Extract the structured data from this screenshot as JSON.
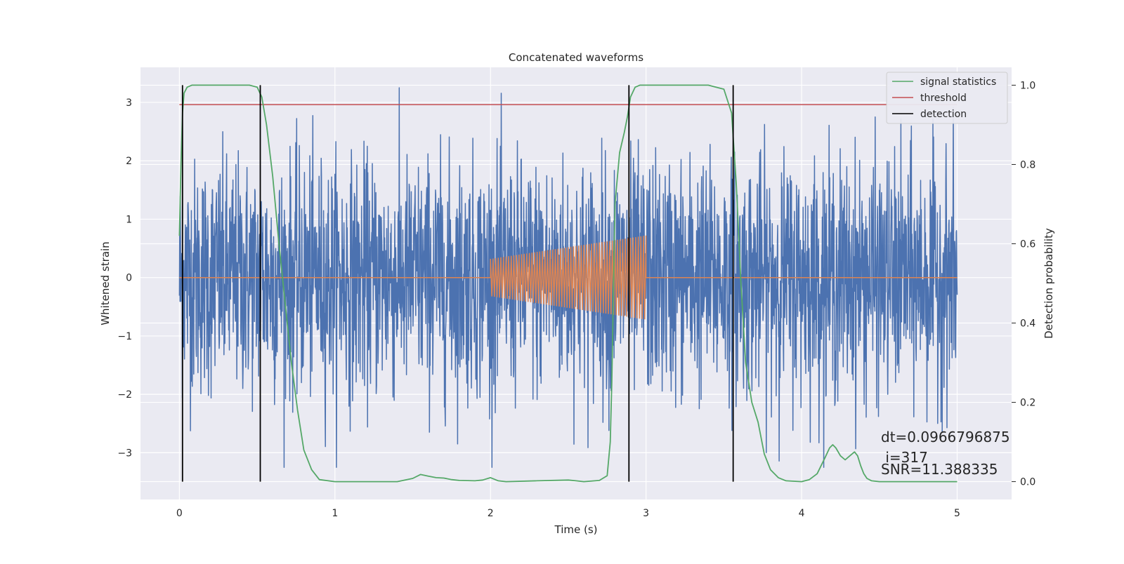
{
  "chart_data": {
    "type": "line",
    "title": "Concatenated waveforms",
    "xlabel": "Time (s)",
    "ylabel_left": "Whitened strain",
    "ylabel_right": "Detection probability",
    "xlim": [
      -0.25,
      5.35
    ],
    "ylim_left": [
      -3.8,
      3.6
    ],
    "ylim_right": [
      -0.045,
      1.045
    ],
    "x_ticks": [
      0,
      1,
      2,
      3,
      4,
      5
    ],
    "x_tick_labels": [
      "0",
      "1",
      "2",
      "3",
      "4",
      "5"
    ],
    "y_left_ticks": [
      3,
      2,
      1,
      0,
      -1,
      -2,
      -3
    ],
    "y_left_tick_labels": [
      "3",
      "2",
      "1",
      "0",
      "−1",
      "−2",
      "−3"
    ],
    "y_right_ticks": [
      1.0,
      0.8,
      0.6,
      0.4,
      0.2,
      0.0
    ],
    "y_right_tick_labels": [
      "1.0",
      "0.8",
      "0.6",
      "0.4",
      "0.2",
      "0.0"
    ],
    "grid": true,
    "legend_position": "upper right",
    "legend": [
      {
        "label": "signal statistics",
        "color": "#55a868"
      },
      {
        "label": "threshold",
        "color": "#c44e52"
      },
      {
        "label": "detection",
        "color": "#000000"
      }
    ],
    "noise": {
      "color": "#4c72b0",
      "x_range": [
        0,
        5
      ],
      "typical_amplitude": 1.0,
      "peak_amplitude": 3.25
    },
    "injected_signal": {
      "color": "#dd8452",
      "chirp_start": 2.0,
      "chirp_end": 3.0,
      "amplitude_start": 0.32,
      "amplitude_end": 0.72,
      "cycles": 60
    },
    "signal_statistics": {
      "axis": "right",
      "color": "#55a868",
      "x": [
        0.0,
        0.01,
        0.02,
        0.03,
        0.05,
        0.08,
        0.12,
        0.2,
        0.3,
        0.4,
        0.45,
        0.5,
        0.53,
        0.56,
        0.6,
        0.64,
        0.68,
        0.72,
        0.76,
        0.8,
        0.85,
        0.9,
        1.0,
        1.2,
        1.4,
        1.5,
        1.55,
        1.6,
        1.65,
        1.7,
        1.75,
        1.8,
        1.9,
        1.95,
        2.0,
        2.05,
        2.1,
        2.3,
        2.5,
        2.55,
        2.6,
        2.7,
        2.75,
        2.77,
        2.78,
        2.8,
        2.83,
        2.86,
        2.88,
        2.9,
        2.93,
        2.96,
        3.0,
        3.1,
        3.2,
        3.3,
        3.4,
        3.5,
        3.55,
        3.58,
        3.61,
        3.64,
        3.68,
        3.72,
        3.76,
        3.8,
        3.85,
        3.9,
        4.0,
        4.05,
        4.1,
        4.15,
        4.18,
        4.2,
        4.22,
        4.25,
        4.28,
        4.31,
        4.34,
        4.36,
        4.38,
        4.4,
        4.42,
        4.45,
        4.5,
        5.0
      ],
      "y": [
        0.62,
        0.8,
        0.93,
        0.98,
        0.995,
        1.0,
        1.0,
        1.0,
        1.0,
        1.0,
        1.0,
        0.995,
        0.97,
        0.9,
        0.77,
        0.6,
        0.45,
        0.3,
        0.18,
        0.08,
        0.03,
        0.005,
        0.0,
        0.0,
        0.0,
        0.008,
        0.018,
        0.014,
        0.01,
        0.009,
        0.005,
        0.003,
        0.002,
        0.004,
        0.01,
        0.002,
        0.0,
        0.002,
        0.004,
        0.002,
        0.0,
        0.003,
        0.015,
        0.1,
        0.25,
        0.7,
        0.83,
        0.88,
        0.92,
        0.97,
        0.995,
        1.0,
        1.0,
        1.0,
        1.0,
        1.0,
        1.0,
        0.99,
        0.93,
        0.75,
        0.5,
        0.3,
        0.2,
        0.15,
        0.07,
        0.03,
        0.01,
        0.002,
        0.0,
        0.005,
        0.02,
        0.06,
        0.085,
        0.093,
        0.085,
        0.065,
        0.055,
        0.065,
        0.075,
        0.065,
        0.04,
        0.02,
        0.008,
        0.002,
        0.0,
        0.0
      ]
    },
    "threshold": {
      "axis": "right",
      "value": 0.951,
      "color": "#c44e52"
    },
    "detections": {
      "color": "#000000",
      "x": [
        0.02,
        0.52,
        2.89,
        3.56
      ]
    },
    "annotations": {
      "dt": "dt=0.0966796875",
      "i": " i=317",
      "snr": "SNR=11.388335"
    }
  }
}
